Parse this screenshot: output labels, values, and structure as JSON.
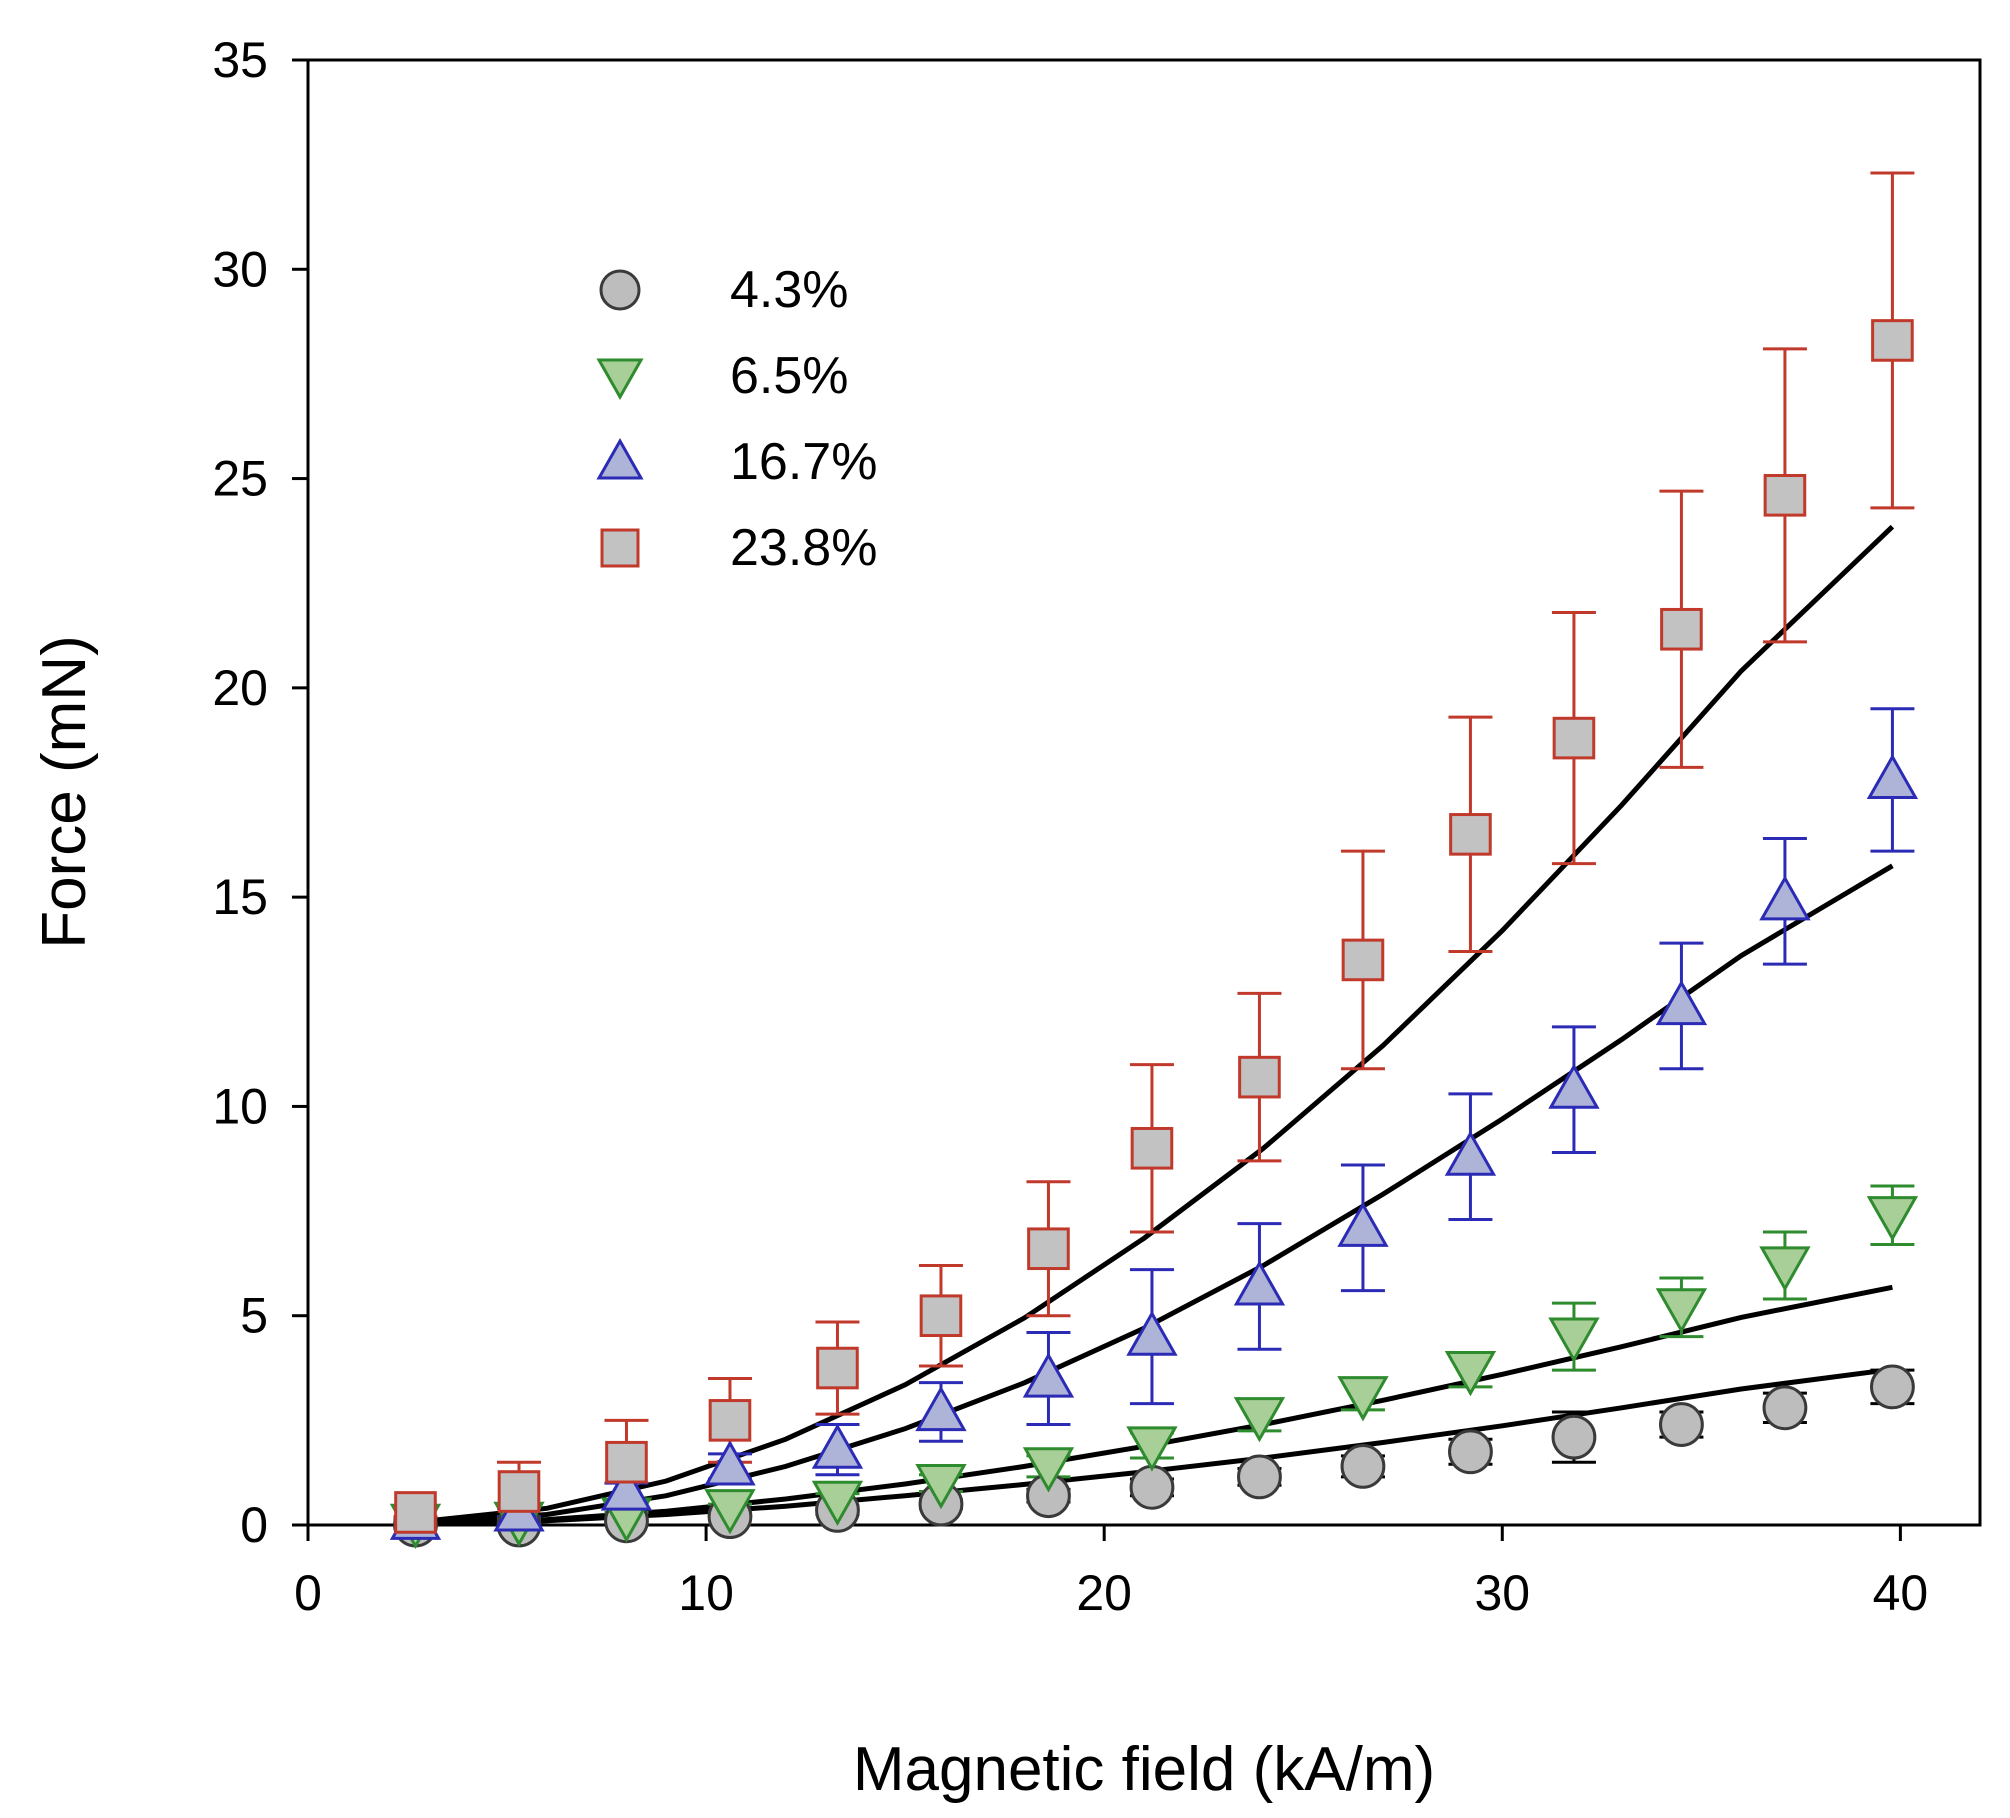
{
  "chart_data": {
    "type": "scatter",
    "title": "",
    "xlabel": "Magnetic field (kA/m)",
    "ylabel": "Force (mN)",
    "xlim": [
      0,
      42
    ],
    "ylim": [
      0,
      35
    ],
    "x_ticks": [
      0,
      10,
      20,
      30,
      40
    ],
    "y_ticks": [
      0,
      5,
      10,
      15,
      20,
      25,
      30,
      35
    ],
    "legend_position": "top-left",
    "x": [
      2.7,
      5.3,
      8.0,
      10.6,
      13.3,
      15.9,
      18.6,
      21.2,
      23.9,
      26.5,
      29.2,
      31.8,
      34.5,
      37.1,
      39.8
    ],
    "series": [
      {
        "name": "4.3%",
        "marker": "circle",
        "stroke": "#3a3a3a",
        "fill": "#bdbdbd",
        "err_color": "#000000",
        "values": [
          0.0,
          0.0,
          0.1,
          0.2,
          0.35,
          0.5,
          0.7,
          0.9,
          1.15,
          1.4,
          1.75,
          2.1,
          2.4,
          2.8,
          3.3
        ],
        "errors": [
          0.05,
          0.05,
          0.05,
          0.05,
          0.1,
          0.1,
          0.15,
          0.2,
          0.2,
          0.25,
          0.3,
          0.6,
          0.3,
          0.35,
          0.4
        ],
        "fit": [
          0.02,
          0.1,
          0.25,
          0.45,
          0.7,
          0.97,
          1.27,
          1.6,
          1.97,
          2.37,
          2.8,
          3.25,
          3.72
        ]
      },
      {
        "name": "6.5%",
        "marker": "triangle-down",
        "stroke": "#2e8b2e",
        "fill": "#a8cf98",
        "err_color": "#2e8b2e",
        "values": [
          0.05,
          0.1,
          0.2,
          0.4,
          0.6,
          1.0,
          1.4,
          1.9,
          2.6,
          3.1,
          3.7,
          4.5,
          5.2,
          6.2,
          7.4
        ],
        "errors": [
          0.05,
          0.05,
          0.1,
          0.1,
          0.15,
          0.2,
          0.25,
          0.3,
          0.35,
          0.35,
          0.4,
          0.8,
          0.7,
          0.8,
          0.7
        ],
        "fit": [
          0.03,
          0.13,
          0.33,
          0.62,
          0.98,
          1.4,
          1.88,
          2.4,
          2.98,
          3.6,
          4.26,
          4.96,
          5.68
        ]
      },
      {
        "name": "16.7%",
        "marker": "triangle-up",
        "stroke": "#2b2bb5",
        "fill": "#aeb3d8",
        "err_color": "#2b2bb5",
        "values": [
          0.1,
          0.3,
          0.8,
          1.4,
          1.8,
          2.7,
          3.5,
          4.5,
          5.7,
          7.1,
          8.8,
          10.4,
          12.4,
          14.9,
          17.8
        ],
        "errors": [
          0.05,
          0.1,
          0.2,
          0.3,
          0.6,
          0.7,
          1.1,
          1.6,
          1.5,
          1.5,
          1.5,
          1.5,
          1.5,
          1.5,
          1.7
        ],
        "fit": [
          0.05,
          0.25,
          0.7,
          1.4,
          2.3,
          3.4,
          4.7,
          6.2,
          7.9,
          9.7,
          11.6,
          13.6,
          15.75
        ]
      },
      {
        "name": "23.8%",
        "marker": "square",
        "stroke": "#c0392b",
        "fill": "#c2c2c2",
        "err_color": "#c0392b",
        "values": [
          0.3,
          0.8,
          1.5,
          2.5,
          3.75,
          5.0,
          6.6,
          9.0,
          10.7,
          13.5,
          16.5,
          18.8,
          21.4,
          24.6,
          28.3
        ],
        "errors": [
          0.1,
          0.7,
          1.0,
          1.0,
          1.1,
          1.2,
          1.6,
          2.0,
          2.0,
          2.6,
          2.8,
          3.0,
          3.3,
          3.5,
          4.0
        ],
        "fit": [
          0.1,
          0.4,
          1.05,
          2.05,
          3.35,
          4.95,
          6.85,
          9.0,
          11.45,
          14.2,
          17.2,
          20.4,
          23.85
        ]
      }
    ],
    "fit_x": [
      3,
      6,
      9,
      12,
      15,
      18,
      21,
      24,
      27,
      30,
      33,
      36,
      39.8
    ]
  }
}
